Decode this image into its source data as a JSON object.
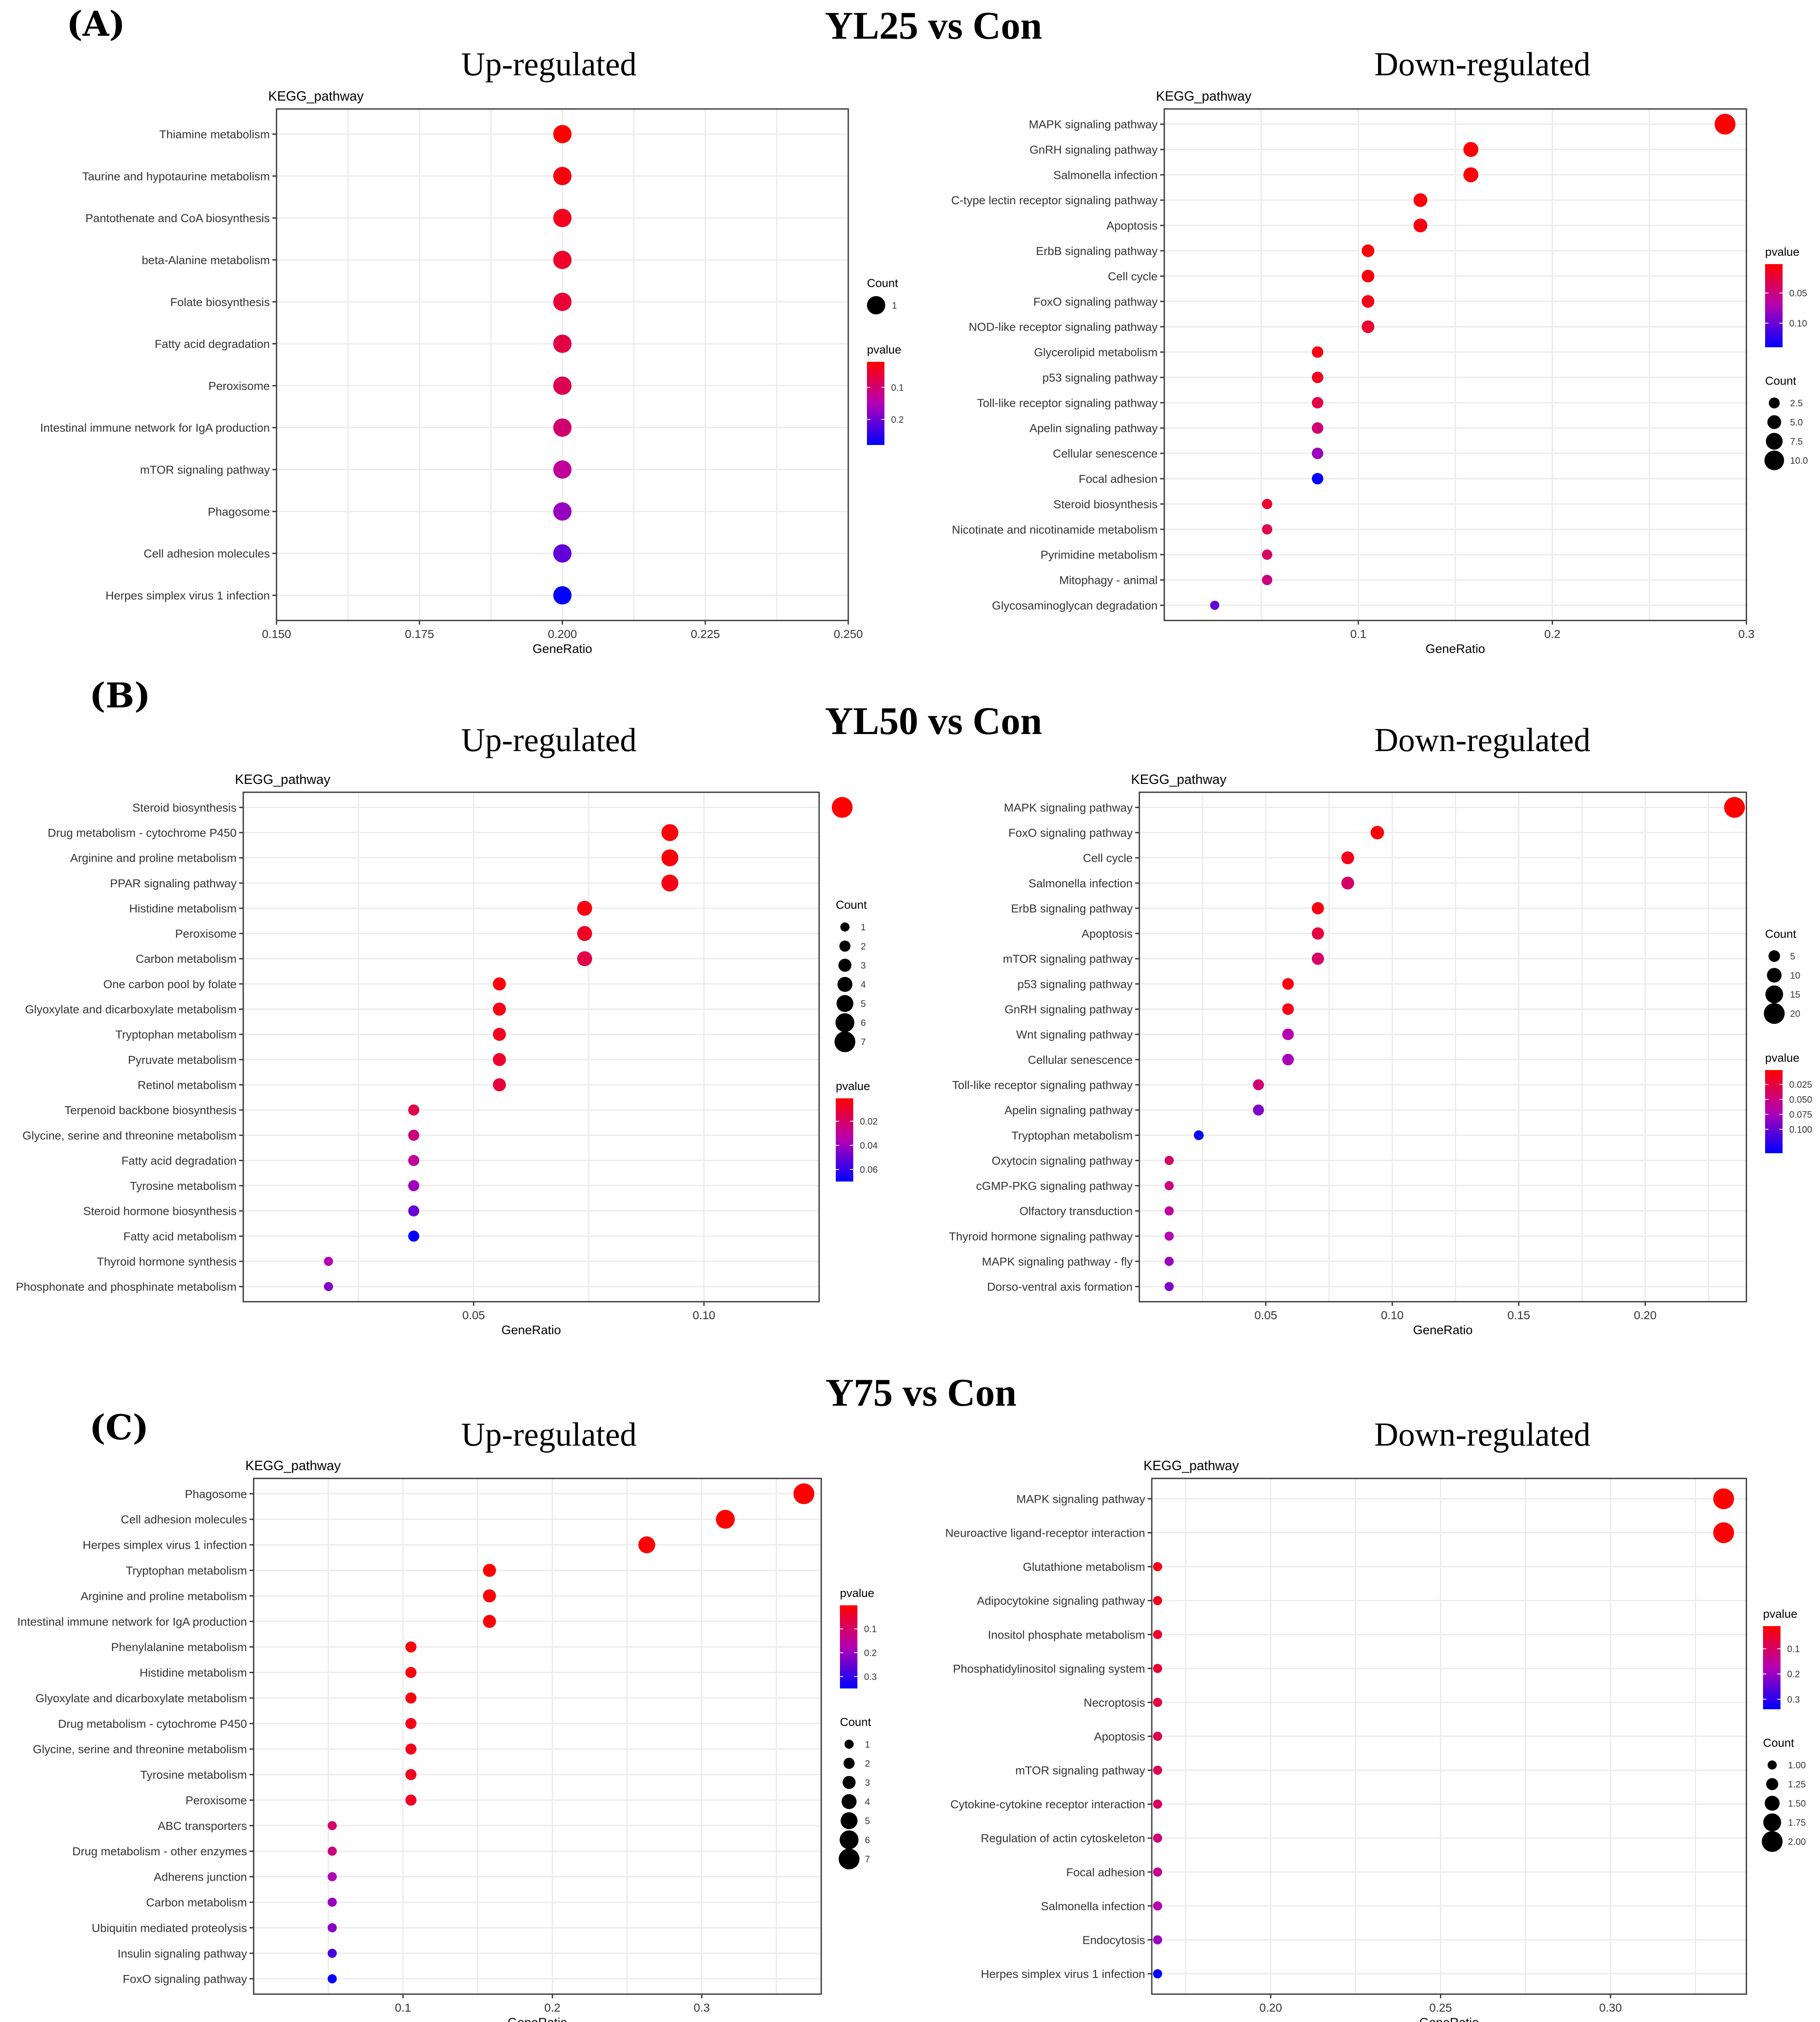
{
  "panel_labels": [
    "(A)",
    "(B)",
    "(C)"
  ],
  "row_titles": [
    "YL25 vs Con",
    "YL50 vs Con",
    "Y75 vs Con"
  ],
  "subtitles": {
    "up": "Up-regulated",
    "down": "Down-regulated"
  },
  "colors": {
    "pvalue_low": "#ff0000",
    "pvalue_mid": "#b400b4",
    "pvalue_high": "#0000ff",
    "frame": "#333333",
    "grid": "#ebebeb"
  },
  "chart_data": [
    {
      "type": "scatter",
      "id": "A_up",
      "ylabel": "KEGG_pathway",
      "xlabel": "GeneRatio",
      "xlim": [
        0.15,
        0.25
      ],
      "xticks": [
        0.15,
        0.175,
        0.2,
        0.225,
        0.25
      ],
      "xtick_labels": [
        "0.150",
        "0.175",
        "0.200",
        "0.225",
        "0.250"
      ],
      "categories": [
        "Thiamine metabolism",
        "Taurine and hypotaurine metabolism",
        "Pantothenate and CoA biosynthesis",
        "beta-Alanine metabolism",
        "Folate biosynthesis",
        "Fatty acid degradation",
        "Peroxisome",
        "Intestinal immune network for IgA production",
        "mTOR signaling pathway",
        "Phagosome",
        "Cell adhesion molecules",
        "Herpes simplex virus 1 infection"
      ],
      "x": [
        0.2,
        0.2,
        0.2,
        0.2,
        0.2,
        0.2,
        0.2,
        0.2,
        0.2,
        0.2,
        0.2,
        0.2
      ],
      "count": [
        1,
        1,
        1,
        1,
        1,
        1,
        1,
        1,
        1,
        1,
        1,
        1
      ],
      "pvalue": [
        0.02,
        0.03,
        0.04,
        0.05,
        0.06,
        0.07,
        0.08,
        0.1,
        0.13,
        0.17,
        0.21,
        0.28
      ],
      "pvalue_range": [
        0.02,
        0.28
      ],
      "count_range": [
        1,
        1
      ],
      "legends": [
        {
          "title": "Count",
          "kind": "size",
          "values": [
            1
          ],
          "labels": [
            "1"
          ]
        },
        {
          "title": "pvalue",
          "kind": "color",
          "values": [
            0.1,
            0.2
          ],
          "labels": [
            "0.1",
            "0.2"
          ]
        }
      ]
    },
    {
      "type": "scatter",
      "id": "A_down",
      "ylabel": "KEGG_pathway",
      "xlabel": "GeneRatio",
      "xlim": [
        0.0,
        0.3
      ],
      "xticks": [
        0.1,
        0.2,
        0.3
      ],
      "xtick_labels": [
        "0.1",
        "0.2",
        "0.3"
      ],
      "categories": [
        "MAPK signaling pathway",
        "GnRH signaling pathway",
        "Salmonella infection",
        "C-type lectin receptor signaling pathway",
        "Apoptosis",
        "ErbB signaling pathway",
        "Cell cycle",
        "FoxO signaling pathway",
        "NOD-like receptor signaling pathway",
        "Glycerolipid metabolism",
        "p53 signaling pathway",
        "Toll-like receptor signaling pathway",
        "Apelin signaling pathway",
        "Cellular senescence",
        "Focal adhesion",
        "Steroid biosynthesis",
        "Nicotinate and nicotinamide metabolism",
        "Pyrimidine metabolism",
        "Mitophagy - animal",
        "Glycosaminoglycan degradation"
      ],
      "x": [
        0.289,
        0.158,
        0.158,
        0.132,
        0.132,
        0.105,
        0.105,
        0.105,
        0.105,
        0.079,
        0.079,
        0.079,
        0.079,
        0.079,
        0.079,
        0.053,
        0.053,
        0.053,
        0.053,
        0.026
      ],
      "count": [
        11,
        6,
        6,
        5,
        5,
        4,
        4,
        4,
        4,
        3,
        3,
        3,
        3,
        3,
        3,
        2,
        2,
        2,
        2,
        1
      ],
      "pvalue": [
        0.002,
        0.003,
        0.004,
        0.006,
        0.008,
        0.005,
        0.008,
        0.012,
        0.02,
        0.01,
        0.015,
        0.03,
        0.045,
        0.08,
        0.14,
        0.02,
        0.03,
        0.04,
        0.05,
        0.1
      ],
      "pvalue_range": [
        0.002,
        0.14
      ],
      "count_range": [
        1,
        11
      ],
      "legends": [
        {
          "title": "pvalue",
          "kind": "color",
          "values": [
            0.05,
            0.1
          ],
          "labels": [
            "0.05",
            "0.10"
          ]
        },
        {
          "title": "Count",
          "kind": "size",
          "values": [
            2.5,
            5,
            7.5,
            10
          ],
          "labels": [
            "2.5",
            "5.0",
            "7.5",
            "10.0"
          ]
        }
      ]
    },
    {
      "type": "scatter",
      "id": "B_up",
      "ylabel": "KEGG_pathway",
      "xlabel": "GeneRatio",
      "xlim": [
        0.0,
        0.125
      ],
      "xticks": [
        0.05,
        0.1
      ],
      "xtick_labels": [
        "0.05",
        "0.10"
      ],
      "categories": [
        "Steroid biosynthesis",
        "Drug metabolism - cytochrome P450",
        "Arginine and proline metabolism",
        "PPAR signaling pathway",
        "Histidine metabolism",
        "Peroxisome",
        "Carbon metabolism",
        "One carbon pool by folate",
        "Glyoxylate and dicarboxylate metabolism",
        "Tryptophan metabolism",
        "Pyruvate metabolism",
        "Retinol metabolism",
        "Terpenoid backbone biosynthesis",
        "Glycine, serine and threonine metabolism",
        "Fatty acid degradation",
        "Tyrosine metabolism",
        "Steroid hormone biosynthesis",
        "Fatty acid metabolism",
        "Thyroid hormone synthesis",
        "Phosphonate and phosphinate metabolism"
      ],
      "x": [
        0.13,
        0.0926,
        0.0926,
        0.0926,
        0.0741,
        0.0741,
        0.0741,
        0.0556,
        0.0556,
        0.0556,
        0.0556,
        0.0556,
        0.037,
        0.037,
        0.037,
        0.037,
        0.037,
        0.037,
        0.0185,
        0.0185
      ],
      "count": [
        7,
        5,
        5,
        5,
        4,
        4,
        4,
        3,
        3,
        3,
        3,
        3,
        2,
        2,
        2,
        2,
        2,
        2,
        1,
        1
      ],
      "pvalue": [
        0.001,
        0.002,
        0.003,
        0.005,
        0.004,
        0.008,
        0.015,
        0.003,
        0.005,
        0.007,
        0.009,
        0.012,
        0.015,
        0.025,
        0.03,
        0.04,
        0.05,
        0.07,
        0.035,
        0.045
      ],
      "pvalue_range": [
        0.001,
        0.07
      ],
      "count_range": [
        1,
        7
      ],
      "legends": [
        {
          "title": "Count",
          "kind": "size",
          "values": [
            1,
            2,
            3,
            4,
            5,
            6,
            7
          ],
          "labels": [
            "1",
            "2",
            "3",
            "4",
            "5",
            "6",
            "7"
          ]
        },
        {
          "title": "pvalue",
          "kind": "color",
          "values": [
            0.02,
            0.04,
            0.06
          ],
          "labels": [
            "0.02",
            "0.04",
            "0.06"
          ]
        }
      ]
    },
    {
      "type": "scatter",
      "id": "B_down",
      "ylabel": "KEGG_pathway",
      "xlabel": "GeneRatio",
      "xlim": [
        0.0,
        0.24
      ],
      "xticks": [
        0.05,
        0.1,
        0.15,
        0.2
      ],
      "xtick_labels": [
        "0.05",
        "0.10",
        "0.15",
        "0.20"
      ],
      "categories": [
        "MAPK signaling pathway",
        "FoxO signaling pathway",
        "Cell cycle",
        "Salmonella infection",
        "ErbB signaling pathway",
        "Apoptosis",
        "mTOR signaling pathway",
        "p53 signaling pathway",
        "GnRH signaling pathway",
        "Wnt signaling pathway",
        "Cellular senescence",
        "Toll-like receptor signaling pathway",
        "Apelin signaling pathway",
        "Tryptophan metabolism",
        "Oxytocin signaling pathway",
        "cGMP-PKG signaling pathway",
        "Olfactory transduction",
        "Thyroid hormone signaling pathway",
        "MAPK signaling pathway - fly",
        "Dorso-ventral axis formation"
      ],
      "x": [
        0.2353,
        0.0941,
        0.0824,
        0.0824,
        0.0706,
        0.0706,
        0.0706,
        0.0588,
        0.0588,
        0.0588,
        0.0588,
        0.0471,
        0.0471,
        0.0235,
        0.0118,
        0.0118,
        0.0118,
        0.0118,
        0.0118,
        0.0118
      ],
      "count": [
        20,
        8,
        7,
        7,
        6,
        6,
        6,
        5,
        5,
        5,
        5,
        4,
        4,
        2,
        1,
        1,
        1,
        1,
        1,
        1
      ],
      "pvalue": [
        0.001,
        0.004,
        0.012,
        0.04,
        0.008,
        0.025,
        0.04,
        0.005,
        0.01,
        0.07,
        0.075,
        0.045,
        0.09,
        0.14,
        0.04,
        0.05,
        0.06,
        0.07,
        0.08,
        0.09
      ],
      "pvalue_range": [
        0.001,
        0.14
      ],
      "count_range": [
        1,
        20
      ],
      "legends": [
        {
          "title": "Count",
          "kind": "size",
          "values": [
            5,
            10,
            15,
            20
          ],
          "labels": [
            "5",
            "10",
            "15",
            "20"
          ]
        },
        {
          "title": "pvalue",
          "kind": "color",
          "values": [
            0.025,
            0.05,
            0.075,
            0.1
          ],
          "labels": [
            "0.025",
            "0.050",
            "0.075",
            "0.100"
          ]
        }
      ]
    },
    {
      "type": "scatter",
      "id": "C_up",
      "ylabel": "KEGG_pathway",
      "xlabel": "GeneRatio",
      "xlim": [
        0.0,
        0.38
      ],
      "xticks": [
        0.1,
        0.2,
        0.3
      ],
      "xtick_labels": [
        "0.1",
        "0.2",
        "0.3"
      ],
      "categories": [
        "Phagosome",
        "Cell adhesion molecules",
        "Herpes simplex virus 1 infection",
        "Tryptophan metabolism",
        "Arginine and proline metabolism",
        "Intestinal immune network for IgA production",
        "Phenylalanine metabolism",
        "Histidine metabolism",
        "Glyoxylate and dicarboxylate metabolism",
        "Drug metabolism - cytochrome P450",
        "Glycine, serine and threonine metabolism",
        "Tyrosine metabolism",
        "Peroxisome",
        "ABC transporters",
        "Drug metabolism - other enzymes",
        "Adherens junction",
        "Carbon metabolism",
        "Ubiquitin mediated proteolysis",
        "Insulin signaling pathway",
        "FoxO signaling pathway"
      ],
      "x": [
        0.3684,
        0.3158,
        0.2632,
        0.1579,
        0.1579,
        0.1579,
        0.1053,
        0.1053,
        0.1053,
        0.1053,
        0.1053,
        0.1053,
        0.1053,
        0.0526,
        0.0526,
        0.0526,
        0.0526,
        0.0526,
        0.0526,
        0.0526
      ],
      "count": [
        7,
        6,
        5,
        3,
        3,
        3,
        2,
        2,
        2,
        2,
        2,
        2,
        2,
        1,
        1,
        1,
        1,
        1,
        1,
        1
      ],
      "pvalue": [
        0.001,
        0.002,
        0.003,
        0.004,
        0.006,
        0.01,
        0.012,
        0.014,
        0.018,
        0.022,
        0.026,
        0.03,
        0.035,
        0.1,
        0.12,
        0.18,
        0.2,
        0.22,
        0.28,
        0.35
      ],
      "pvalue_range": [
        0.001,
        0.35
      ],
      "count_range": [
        1,
        7
      ],
      "legends": [
        {
          "title": "pvalue",
          "kind": "color",
          "values": [
            0.1,
            0.2,
            0.3
          ],
          "labels": [
            "0.1",
            "0.2",
            "0.3"
          ]
        },
        {
          "title": "Count",
          "kind": "size",
          "values": [
            1,
            2,
            3,
            4,
            5,
            6,
            7
          ],
          "labels": [
            "1",
            "2",
            "3",
            "4",
            "5",
            "6",
            "7"
          ]
        }
      ]
    },
    {
      "type": "scatter",
      "id": "C_down",
      "ylabel": "KEGG_pathway",
      "xlabel": "GeneRatio",
      "xlim": [
        0.165,
        0.34
      ],
      "xticks": [
        0.2,
        0.25,
        0.3
      ],
      "xtick_labels": [
        "0.20",
        "0.25",
        "0.30"
      ],
      "categories": [
        "MAPK signaling pathway",
        "Neuroactive ligand-receptor interaction",
        "Glutathione metabolism",
        "Adipocytokine signaling pathway",
        "Inositol phosphate metabolism",
        "Phosphatidylinositol signaling system",
        "Necroptosis",
        "Apoptosis",
        "mTOR signaling pathway",
        "Cytokine-cytokine receptor interaction",
        "Regulation of actin cytoskeleton",
        "Focal adhesion",
        "Salmonella infection",
        "Endocytosis",
        "Herpes simplex virus 1 infection"
      ],
      "x": [
        0.3333,
        0.3333,
        0.1667,
        0.1667,
        0.1667,
        0.1667,
        0.1667,
        0.1667,
        0.1667,
        0.1667,
        0.1667,
        0.1667,
        0.1667,
        0.1667,
        0.1667
      ],
      "count": [
        2,
        2,
        1,
        1,
        1,
        1,
        1,
        1,
        1,
        1,
        1,
        1,
        1,
        1,
        1
      ],
      "pvalue": [
        0.01,
        0.015,
        0.03,
        0.04,
        0.05,
        0.06,
        0.07,
        0.08,
        0.09,
        0.1,
        0.12,
        0.14,
        0.17,
        0.2,
        0.34
      ],
      "pvalue_range": [
        0.01,
        0.34
      ],
      "count_range": [
        1,
        2
      ],
      "legends": [
        {
          "title": "pvalue",
          "kind": "color",
          "values": [
            0.1,
            0.2,
            0.3
          ],
          "labels": [
            "0.1",
            "0.2",
            "0.3"
          ]
        },
        {
          "title": "Count",
          "kind": "size",
          "values": [
            1,
            1.25,
            1.5,
            1.75,
            2
          ],
          "labels": [
            "1.00",
            "1.25",
            "1.50",
            "1.75",
            "2.00"
          ]
        }
      ]
    }
  ]
}
